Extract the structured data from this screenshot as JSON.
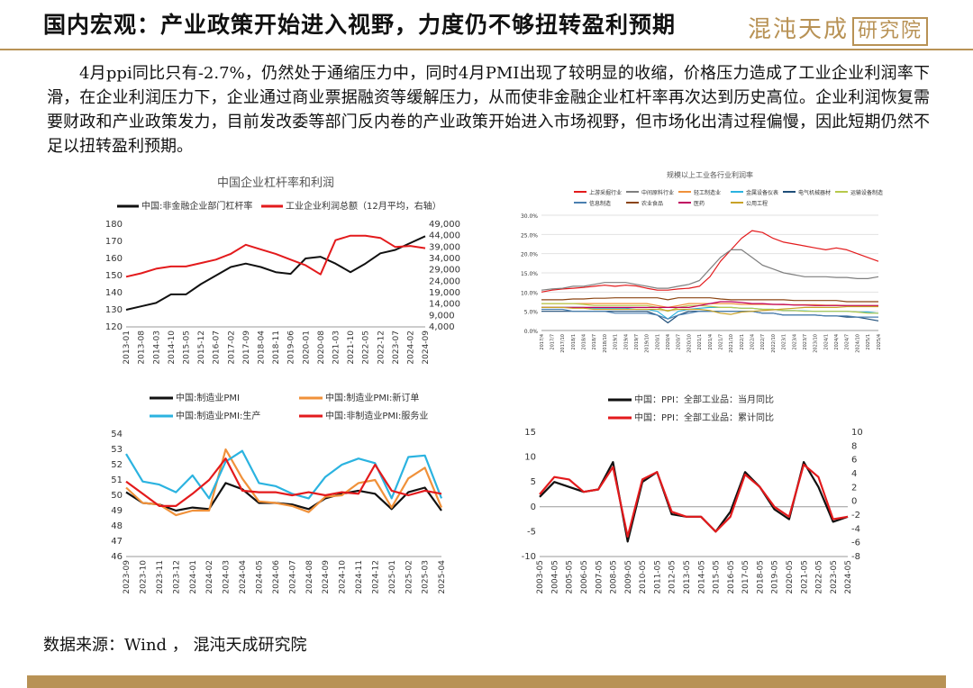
{
  "header": {
    "title": "国内宏观：产业政策开始进入视野，力度仍不够扭转盈利预期",
    "logo_text": "混沌天成",
    "logo_box": "研究院"
  },
  "body_text": "4月ppi同比只有-2.7%，仍然处于通缩压力中，同时4月PMI出现了较明显的收缩，价格压力造成了工业企业利润率下滑，在企业利润压力下，企业通过商业票据融资等缓解压力，从而使非金融企业杠杆率再次达到历史高位。企业利润恢复需要财政和产业政策发力，目前发改委等部门反内卷的产业政策开始进入市场视野，但市场化出清过程偏慢，因此短期仍然不足以扭转盈利预期。",
  "source": "数据来源：Wind ， 混沌天成研究院",
  "colors": {
    "accent": "#b89255",
    "black": "#111111",
    "red": "#e31a1c",
    "orange": "#f0913a",
    "cyan": "#2bb3e0"
  },
  "chart_data": [
    {
      "type": "line",
      "title": "中国企业杠杆率和利润",
      "x": [
        "2013-01",
        "2013-08",
        "2014-03",
        "2014-10",
        "2015-05",
        "2015-12",
        "2016-07",
        "2017-02",
        "2017-09",
        "2018-04",
        "2018-11",
        "2019-06",
        "2020-01",
        "2020-08",
        "2021-03",
        "2021-10",
        "2022-05",
        "2022-12",
        "2023-07",
        "2024-02",
        "2024-09"
      ],
      "ylim_left": [
        120,
        180
      ],
      "yticks_left": [
        "120",
        "130",
        "140",
        "150",
        "160",
        "170",
        "180"
      ],
      "ylim_right": [
        4000,
        49000
      ],
      "yticks_right": [
        "4,000",
        "9,000",
        "14,000",
        "19,000",
        "24,000",
        "29,000",
        "34,000",
        "39,000",
        "44,000",
        "49,000"
      ],
      "series": [
        {
          "name": "中国:非金融企业部门杠杆率",
          "axis": "left",
          "color": "#111111",
          "values": [
            130,
            132,
            134,
            139,
            139,
            145,
            150,
            155,
            157,
            155,
            152,
            151,
            160,
            161,
            157,
            152,
            157,
            163,
            165,
            169,
            173
          ]
        },
        {
          "name": "工业企业利润总额（12月平均，右轴）",
          "axis": "right",
          "color": "#e31a1c",
          "values": [
            26000,
            27500,
            29500,
            30500,
            30500,
            32000,
            33500,
            36000,
            40000,
            38000,
            36000,
            33500,
            31000,
            27000,
            42000,
            44000,
            44000,
            43000,
            39000,
            39500,
            38500
          ]
        }
      ]
    },
    {
      "type": "line",
      "title": "规模以上工业各行业利润率",
      "yticks": [
        "0.0%",
        "5.0%",
        "10.0%",
        "15.0%",
        "20.0%",
        "25.0%",
        "30.0%"
      ],
      "ylim": [
        0,
        30
      ],
      "x": [
        "2017/4",
        "2017/7",
        "2017/10",
        "2018/1",
        "2018/4",
        "2018/7",
        "2018/10",
        "2019/1",
        "2019/4",
        "2019/7",
        "2019/10",
        "2020/1",
        "2020/4",
        "2020/7",
        "2020/10",
        "2021/1",
        "2021/4",
        "2021/7",
        "2021/10",
        "2022/1",
        "2022/4",
        "2022/7",
        "2022/10",
        "2023/1",
        "2023/4",
        "2023/7",
        "2023/10",
        "2024/1",
        "2024/4",
        "2024/7",
        "2024/10",
        "2025/1",
        "2025/4"
      ],
      "series": [
        {
          "name": "上游采掘行业",
          "color": "#e31a1c",
          "values": [
            10,
            10.5,
            10.8,
            11,
            11.2,
            11.5,
            11.8,
            11.5,
            11.8,
            11.6,
            11,
            10.5,
            10.5,
            10.8,
            11,
            11.5,
            14,
            18,
            21,
            24,
            26,
            25.5,
            24,
            23,
            22.5,
            22,
            21.5,
            21,
            21.5,
            21,
            20,
            19,
            18
          ]
        },
        {
          "name": "中间原料行业",
          "color": "#7f7f7f",
          "values": [
            10.5,
            10.8,
            11,
            11.5,
            11.5,
            12,
            12.5,
            12.5,
            12.5,
            12,
            11.5,
            11,
            11,
            11.5,
            12,
            13,
            16,
            19,
            21,
            21,
            19,
            17,
            16,
            15,
            14.5,
            14,
            14,
            14,
            13.8,
            13.8,
            13.5,
            13.5,
            14
          ]
        },
        {
          "name": "轻工制造业",
          "color": "#f0913a",
          "values": [
            7,
            7,
            7,
            7,
            7,
            7,
            7,
            7,
            7,
            7,
            7,
            6.5,
            6,
            6.5,
            7,
            7,
            7,
            7,
            7,
            6.8,
            6.8,
            6.8,
            6.8,
            6.7,
            6.7,
            6.7,
            6.7,
            6.6,
            6.6,
            6.5,
            6.5,
            6.5,
            6.5
          ]
        },
        {
          "name": "金属设备仪表",
          "color": "#2bb3e0",
          "values": [
            6,
            6,
            6,
            6,
            6,
            5.8,
            5.8,
            5.8,
            5.8,
            5.5,
            5.5,
            5,
            3,
            5,
            5.5,
            5.8,
            6,
            6,
            6,
            5.8,
            5.8,
            5.5,
            5.5,
            5.2,
            5.2,
            5.1,
            5,
            5,
            5,
            5,
            4.8,
            4.8,
            4.5
          ]
        },
        {
          "name": "电气机械器材",
          "color": "#1f4e79",
          "values": [
            5,
            5,
            5,
            5,
            5,
            5,
            5,
            5,
            5,
            5,
            5,
            4,
            2,
            4,
            5,
            5,
            5,
            5,
            5,
            5,
            5,
            4.5,
            4.5,
            4,
            4,
            4,
            4,
            3.8,
            3.8,
            3.5,
            3.5,
            3,
            2.5
          ]
        },
        {
          "name": "运输设备制造",
          "color": "#b7c94b",
          "values": [
            7,
            7,
            7,
            7,
            6.8,
            6.5,
            6.5,
            6.5,
            6.5,
            6.5,
            6.5,
            6,
            5,
            6,
            6.5,
            6.5,
            6.3,
            6,
            6,
            5.8,
            5.8,
            5.5,
            5.5,
            5.2,
            5.2,
            5,
            5,
            5,
            5,
            5,
            4.8,
            4.5,
            4.5
          ]
        },
        {
          "name": "信息制造",
          "color": "#4a7fb0",
          "values": [
            5.5,
            5.5,
            5.5,
            5,
            5,
            5,
            5,
            4.5,
            4.5,
            4.5,
            4.5,
            4,
            3,
            4,
            4.5,
            5,
            5,
            5,
            5,
            5,
            5,
            4.5,
            4.5,
            4,
            4,
            4,
            4,
            3.8,
            3.8,
            3.8,
            3.5,
            3.5,
            3.5
          ]
        },
        {
          "name": "农业食品",
          "color": "#8b4513",
          "values": [
            8,
            8,
            8,
            8.2,
            8.2,
            8.4,
            8.4,
            8.5,
            8.5,
            8.5,
            8.5,
            8.5,
            8,
            8.5,
            8.5,
            8.5,
            8.5,
            8.2,
            8,
            8,
            8,
            8,
            8,
            8,
            7.8,
            7.8,
            7.8,
            7.8,
            7.8,
            7.5,
            7.5,
            7.5,
            7.5
          ]
        },
        {
          "name": "医药",
          "color": "#c00060",
          "values": [
            6,
            6,
            6,
            6,
            6,
            6,
            6,
            6,
            6,
            6,
            6,
            6,
            6,
            6,
            6,
            6.5,
            7,
            7.5,
            7.5,
            7.3,
            7,
            7,
            6.8,
            6.8,
            6.6,
            6.6,
            6.5,
            6.5,
            6.5,
            6.5,
            6.5,
            6.5,
            6.5
          ]
        },
        {
          "name": "公用工程",
          "color": "#c9a227",
          "values": [
            6,
            6,
            6,
            5.8,
            5.8,
            5.5,
            5.5,
            5.5,
            5.5,
            5.5,
            5.5,
            5.5,
            5.2,
            5.5,
            5.5,
            5.5,
            5.2,
            4.5,
            4.2,
            4.8,
            5,
            5.2,
            5.4,
            5.6,
            5.8,
            6,
            6,
            6,
            6,
            6.2,
            6.2,
            6.2,
            6.2
          ]
        }
      ]
    },
    {
      "type": "line",
      "x": [
        "2023-09",
        "2023-10",
        "2023-11",
        "2023-12",
        "2024-01",
        "2024-02",
        "2024-03",
        "2024-04",
        "2024-05",
        "2024-06",
        "2024-07",
        "2024-08",
        "2024-09",
        "2024-10",
        "2024-11",
        "2024-12",
        "2025-01",
        "2025-02",
        "2025-03",
        "2025-04"
      ],
      "ylim": [
        46,
        54
      ],
      "yticks": [
        "46",
        "47",
        "48",
        "49",
        "50",
        "51",
        "52",
        "53",
        "54"
      ],
      "series": [
        {
          "name": "中国:制造业PMI",
          "color": "#111111",
          "values": [
            50.2,
            49.5,
            49.4,
            49.0,
            49.2,
            49.1,
            50.8,
            50.4,
            49.5,
            49.5,
            49.4,
            49.1,
            49.8,
            50.1,
            50.3,
            50.1,
            49.1,
            50.2,
            50.5,
            49.0
          ]
        },
        {
          "name": "中国:制造业PMI:新订单",
          "color": "#f0913a",
          "values": [
            50.5,
            49.5,
            49.4,
            48.7,
            49.0,
            49.0,
            53.0,
            51.1,
            49.6,
            49.5,
            49.3,
            48.9,
            49.9,
            50.0,
            50.8,
            51.0,
            49.2,
            51.1,
            51.8,
            49.2
          ]
        },
        {
          "name": "中国:制造业PMI:生产",
          "color": "#2bb3e0",
          "values": [
            52.7,
            50.9,
            50.7,
            50.2,
            51.3,
            49.8,
            52.2,
            52.9,
            50.8,
            50.6,
            50.1,
            49.8,
            51.2,
            52.0,
            52.4,
            52.1,
            49.8,
            52.5,
            52.6,
            49.8
          ]
        },
        {
          "name": "中国:非制造业PMI:服务业",
          "color": "#e31a1c",
          "values": [
            50.9,
            50.1,
            49.3,
            49.3,
            50.1,
            51.0,
            52.4,
            50.3,
            50.2,
            50.2,
            50.0,
            50.2,
            50.0,
            50.2,
            50.1,
            52.0,
            50.3,
            50.0,
            50.3,
            50.1
          ]
        }
      ]
    },
    {
      "type": "line",
      "x": [
        "2003-05",
        "2004-05",
        "2005-05",
        "2006-05",
        "2007-05",
        "2008-05",
        "2009-05",
        "2010-05",
        "2011-05",
        "2012-05",
        "2013-05",
        "2014-05",
        "2015-05",
        "2016-05",
        "2017-05",
        "2018-05",
        "2019-05",
        "2020-05",
        "2021-05",
        "2022-05",
        "2023-05",
        "2024-05"
      ],
      "ylim_left": [
        -10,
        15
      ],
      "yticks_left": [
        "-10",
        "-5",
        "0",
        "5",
        "10",
        "15"
      ],
      "ylim_right": [
        -8,
        10
      ],
      "yticks_right": [
        "-8",
        "-6",
        "-4",
        "-2",
        "0",
        "2",
        "4",
        "6",
        "8",
        "10"
      ],
      "series": [
        {
          "name": "中国：PPI：全部工业品：当月同比",
          "color": "#111111",
          "values": [
            2,
            5,
            4,
            3,
            3.5,
            9,
            -7,
            5,
            7,
            -1.5,
            -2,
            -2,
            -5,
            -1,
            7,
            4,
            -0.5,
            -2.5,
            9,
            4,
            -3,
            -2
          ]
        },
        {
          "name": "中国：PPI：全部工业品：累计同比",
          "color": "#e31a1c",
          "values": [
            2.5,
            6,
            5.5,
            3,
            3.5,
            8,
            -6,
            5.5,
            7,
            -1,
            -2,
            -2,
            -5,
            -2,
            6.5,
            4,
            0,
            -2,
            8.5,
            6,
            -2.5,
            -2
          ]
        }
      ]
    }
  ]
}
